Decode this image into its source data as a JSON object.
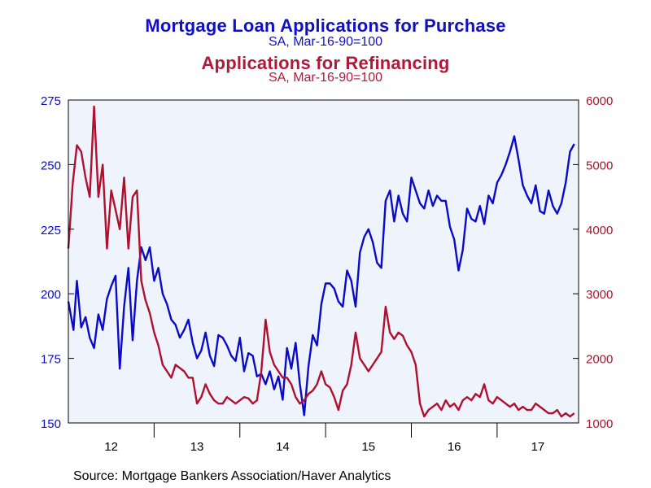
{
  "source": "Source:  Mortgage Bankers Association/Haver Analytics",
  "colors": {
    "purchase": "#0a0ac8",
    "refinance": "#b0102e",
    "plot_bg": "#eef3fc",
    "grid": "#000000"
  },
  "chart_data": {
    "type": "line",
    "title": "Mortgage Loan Applications for Purchase",
    "subtitle": "SA, Mar-16-90=100",
    "title2": "Applications for Refinancing",
    "subtitle2": "SA, Mar-16-90=100",
    "xlim": [
      2012.0,
      2017.95
    ],
    "x_ticks": [
      "12",
      "13",
      "14",
      "15",
      "16",
      "17"
    ],
    "y_left": {
      "ylim": [
        150,
        275
      ],
      "ticks": [
        150,
        175,
        200,
        225,
        250,
        275
      ]
    },
    "y_right": {
      "ylim": [
        1000,
        6000
      ],
      "ticks": [
        1000,
        2000,
        3000,
        4000,
        5000,
        6000
      ]
    },
    "series": [
      {
        "name": "Mortgage Loan Applications for Purchase",
        "axis": "left",
        "x": [
          2012.0,
          2012.06,
          2012.1,
          2012.15,
          2012.2,
          2012.25,
          2012.3,
          2012.35,
          2012.4,
          2012.45,
          2012.5,
          2012.55,
          2012.6,
          2012.65,
          2012.7,
          2012.75,
          2012.8,
          2012.85,
          2012.9,
          2012.95,
          2013.0,
          2013.05,
          2013.1,
          2013.15,
          2013.2,
          2013.25,
          2013.3,
          2013.35,
          2013.4,
          2013.45,
          2013.5,
          2013.55,
          2013.6,
          2013.65,
          2013.7,
          2013.75,
          2013.8,
          2013.85,
          2013.9,
          2013.95,
          2014.0,
          2014.05,
          2014.1,
          2014.15,
          2014.2,
          2014.25,
          2014.3,
          2014.35,
          2014.4,
          2014.45,
          2014.5,
          2014.55,
          2014.6,
          2014.65,
          2014.7,
          2014.75,
          2014.8,
          2014.85,
          2014.9,
          2014.95,
          2015.0,
          2015.05,
          2015.1,
          2015.15,
          2015.2,
          2015.25,
          2015.3,
          2015.35,
          2015.4,
          2015.45,
          2015.5,
          2015.55,
          2015.6,
          2015.65,
          2015.7,
          2015.75,
          2015.8,
          2015.85,
          2015.9,
          2015.95,
          2016.0,
          2016.05,
          2016.1,
          2016.15,
          2016.2,
          2016.25,
          2016.3,
          2016.35,
          2016.4,
          2016.45,
          2016.5,
          2016.55,
          2016.6,
          2016.65,
          2016.7,
          2016.75,
          2016.8,
          2016.85,
          2016.9,
          2016.95,
          2017.0,
          2017.05,
          2017.1,
          2017.15,
          2017.2,
          2017.25,
          2017.3,
          2017.35,
          2017.4,
          2017.45,
          2017.5,
          2017.55,
          2017.6,
          2017.65,
          2017.7,
          2017.75,
          2017.8,
          2017.85,
          2017.9
        ],
        "values": [
          197,
          186,
          205,
          187,
          191,
          183,
          179,
          192,
          186,
          198,
          203,
          207,
          171,
          195,
          210,
          182,
          205,
          218,
          213,
          218,
          205,
          210,
          200,
          196,
          190,
          188,
          183,
          186,
          190,
          181,
          175,
          178,
          185,
          176,
          172,
          184,
          183,
          180,
          176,
          174,
          183,
          170,
          177,
          176,
          168,
          169,
          165,
          170,
          163,
          168,
          159,
          179,
          171,
          181,
          165,
          153,
          172,
          184,
          180,
          196,
          204,
          204,
          202,
          197,
          195,
          209,
          205,
          195,
          216,
          222,
          225,
          220,
          212,
          210,
          236,
          240,
          228,
          238,
          231,
          228,
          245,
          240,
          235,
          233,
          240,
          234,
          238,
          236,
          236,
          226,
          221,
          209,
          217,
          233,
          229,
          228,
          234,
          227,
          238,
          235,
          243,
          246,
          250,
          255,
          261,
          252,
          242,
          238,
          235,
          242,
          232,
          231,
          240,
          234,
          231,
          235,
          243,
          255,
          258
        ],
        "points": []
      },
      {
        "name": "Applications for Refinancing",
        "axis": "right",
        "x": [
          2012.0,
          2012.05,
          2012.1,
          2012.15,
          2012.2,
          2012.25,
          2012.3,
          2012.35,
          2012.4,
          2012.45,
          2012.5,
          2012.55,
          2012.6,
          2012.65,
          2012.7,
          2012.75,
          2012.8,
          2012.85,
          2012.9,
          2012.95,
          2013.0,
          2013.05,
          2013.1,
          2013.15,
          2013.2,
          2013.25,
          2013.3,
          2013.35,
          2013.4,
          2013.45,
          2013.5,
          2013.55,
          2013.6,
          2013.65,
          2013.7,
          2013.75,
          2013.8,
          2013.85,
          2013.9,
          2013.95,
          2014.0,
          2014.05,
          2014.1,
          2014.15,
          2014.2,
          2014.25,
          2014.3,
          2014.35,
          2014.4,
          2014.45,
          2014.5,
          2014.55,
          2014.6,
          2014.65,
          2014.7,
          2014.75,
          2014.8,
          2014.85,
          2014.9,
          2014.95,
          2015.0,
          2015.05,
          2015.1,
          2015.15,
          2015.2,
          2015.25,
          2015.3,
          2015.35,
          2015.4,
          2015.45,
          2015.5,
          2015.55,
          2015.6,
          2015.65,
          2015.7,
          2015.75,
          2015.8,
          2015.85,
          2015.9,
          2015.95,
          2016.0,
          2016.05,
          2016.1,
          2016.15,
          2016.2,
          2016.25,
          2016.3,
          2016.35,
          2016.4,
          2016.45,
          2016.5,
          2016.55,
          2016.6,
          2016.65,
          2016.7,
          2016.75,
          2016.8,
          2016.85,
          2016.9,
          2016.95,
          2017.0,
          2017.05,
          2017.1,
          2017.15,
          2017.2,
          2017.25,
          2017.3,
          2017.35,
          2017.4,
          2017.45,
          2017.5,
          2017.55,
          2017.6,
          2017.65,
          2017.7,
          2017.75,
          2017.8,
          2017.85,
          2017.9
        ],
        "values": [
          3700,
          4700,
          5300,
          5200,
          4800,
          4500,
          5900,
          4500,
          5000,
          3700,
          4600,
          4300,
          4000,
          4800,
          3700,
          4500,
          4600,
          3200,
          2900,
          2700,
          2400,
          2200,
          1900,
          1800,
          1700,
          1900,
          1850,
          1800,
          1700,
          1700,
          1300,
          1400,
          1600,
          1450,
          1350,
          1300,
          1300,
          1400,
          1350,
          1300,
          1350,
          1400,
          1380,
          1300,
          1350,
          1800,
          2600,
          2100,
          1900,
          1800,
          1700,
          1700,
          1600,
          1400,
          1300,
          1350,
          1450,
          1500,
          1600,
          1800,
          1600,
          1550,
          1400,
          1200,
          1500,
          1600,
          1900,
          2400,
          2000,
          1900,
          1800,
          1900,
          2000,
          2100,
          2800,
          2400,
          2300,
          2400,
          2350,
          2200,
          2100,
          1900,
          1300,
          1100,
          1200,
          1250,
          1300,
          1200,
          1350,
          1250,
          1300,
          1200,
          1350,
          1400,
          1350,
          1450,
          1400,
          1600,
          1350,
          1300,
          1400,
          1350,
          1300,
          1250,
          1300,
          1200,
          1250,
          1200,
          1200,
          1300,
          1250,
          1200,
          1150,
          1150,
          1200,
          1100,
          1150,
          1100,
          1150
        ],
        "points": []
      }
    ],
    "grid": false,
    "legend": "none"
  }
}
